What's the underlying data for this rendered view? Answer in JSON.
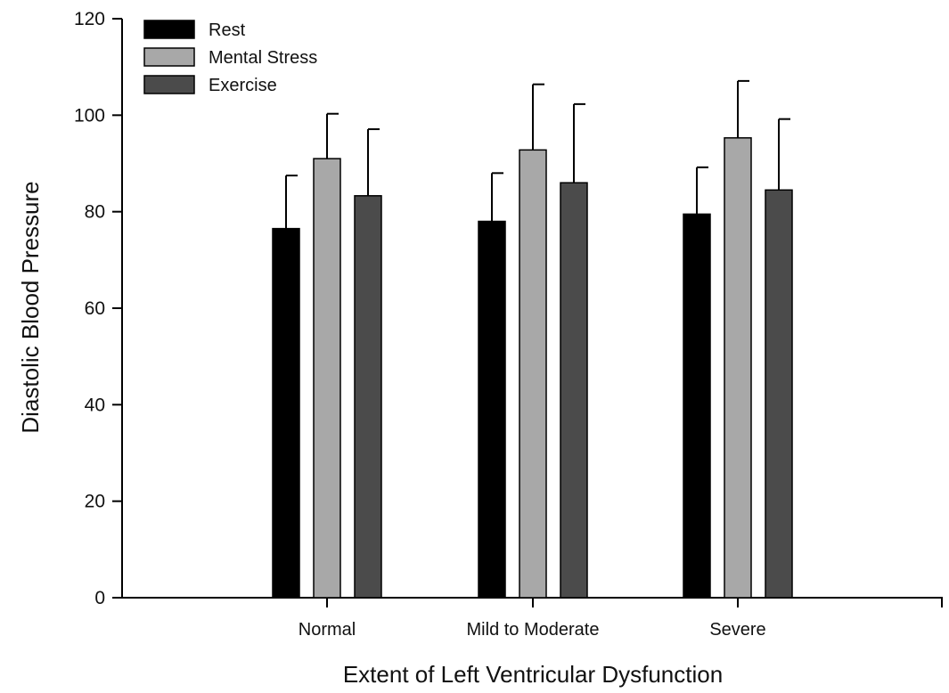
{
  "chart_data": {
    "type": "bar",
    "categories": [
      "Normal",
      "Mild to Moderate",
      "Severe"
    ],
    "series": [
      {
        "name": "Rest",
        "color": "#000000",
        "values": [
          76.5,
          78,
          79.5
        ],
        "error": [
          11,
          10,
          9.7
        ]
      },
      {
        "name": "Mental Stress",
        "color": "#a8a8a8",
        "values": [
          91,
          92.8,
          95.3
        ],
        "error": [
          9.3,
          13.6,
          11.8
        ]
      },
      {
        "name": "Exercise",
        "color": "#4b4b4b",
        "values": [
          83.3,
          86,
          84.5
        ],
        "error": [
          13.8,
          16.3,
          14.7
        ]
      }
    ],
    "xlabel": "Extent of Left Ventricular Dysfunction",
    "ylabel": "Diastolic Blood Pressure",
    "ylim": [
      0,
      120
    ],
    "yticks": [
      0,
      20,
      40,
      60,
      80,
      100,
      120
    ],
    "grid": false,
    "legend_position": "top-left"
  }
}
